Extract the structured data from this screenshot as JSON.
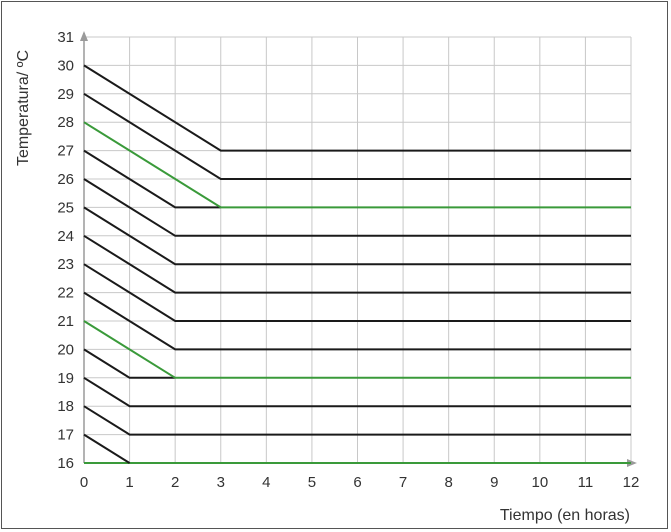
{
  "chart_data": {
    "type": "line",
    "xlabel": "Tiempo (en horas)",
    "ylabel": "Temperatura/ ºC",
    "xlim": [
      0,
      12
    ],
    "ylim": [
      16,
      31
    ],
    "x_ticks": [
      0,
      1,
      2,
      3,
      4,
      5,
      6,
      7,
      8,
      9,
      10,
      11,
      12
    ],
    "y_ticks": [
      16,
      17,
      18,
      19,
      20,
      21,
      22,
      23,
      24,
      25,
      26,
      27,
      28,
      29,
      30,
      31
    ],
    "grid": true,
    "colors": {
      "black_line": "#1a1a1a",
      "green_line": "#3a9a3a",
      "grid": "#c8c8c8",
      "axis": "#9a9a9a"
    },
    "series": [
      {
        "color": "green",
        "points": [
          [
            0,
            16
          ],
          [
            12,
            16
          ]
        ]
      },
      {
        "color": "black",
        "points": [
          [
            0,
            17
          ],
          [
            1,
            16
          ]
        ]
      },
      {
        "color": "black",
        "points": [
          [
            0,
            18
          ],
          [
            1,
            17
          ],
          [
            12,
            17
          ]
        ]
      },
      {
        "color": "black",
        "points": [
          [
            0,
            19
          ],
          [
            1,
            18
          ],
          [
            12,
            18
          ]
        ]
      },
      {
        "color": "black",
        "points": [
          [
            0,
            20
          ],
          [
            1,
            19
          ],
          [
            2,
            19
          ]
        ]
      },
      {
        "color": "green",
        "points": [
          [
            0,
            21
          ],
          [
            2,
            19
          ],
          [
            12,
            19
          ]
        ]
      },
      {
        "color": "black",
        "points": [
          [
            0,
            22
          ],
          [
            2,
            20
          ],
          [
            12,
            20
          ]
        ]
      },
      {
        "color": "black",
        "points": [
          [
            0,
            23
          ],
          [
            2,
            21
          ],
          [
            12,
            21
          ]
        ]
      },
      {
        "color": "black",
        "points": [
          [
            0,
            24
          ],
          [
            2,
            22
          ],
          [
            12,
            22
          ]
        ]
      },
      {
        "color": "black",
        "points": [
          [
            0,
            25
          ],
          [
            2,
            23
          ],
          [
            12,
            23
          ]
        ]
      },
      {
        "color": "black",
        "points": [
          [
            0,
            26
          ],
          [
            2,
            24
          ],
          [
            12,
            24
          ]
        ]
      },
      {
        "color": "black",
        "points": [
          [
            0,
            27
          ],
          [
            2,
            25
          ],
          [
            3,
            25
          ]
        ]
      },
      {
        "color": "green",
        "points": [
          [
            0,
            28
          ],
          [
            3,
            25
          ],
          [
            12,
            25
          ]
        ]
      },
      {
        "color": "black",
        "points": [
          [
            0,
            29
          ],
          [
            3,
            26
          ],
          [
            12,
            26
          ]
        ]
      },
      {
        "color": "black",
        "points": [
          [
            0,
            30
          ],
          [
            3,
            27
          ],
          [
            12,
            27
          ]
        ]
      }
    ]
  }
}
